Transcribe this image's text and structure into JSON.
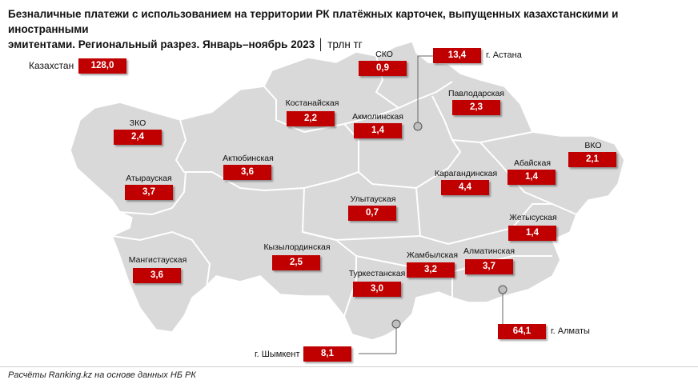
{
  "title": {
    "line1": "Безналичные платежи с использованием на территории РК платёжных карточек, выпущенных казахстанскими и иностранными",
    "line2": "эмитентами. Региональный разрез. Январь–ноябрь 2023",
    "unit": "│ трлн тг"
  },
  "source": "Расчёты Ranking.kz на основе данных НБ РК",
  "total": {
    "label": "Казахстан",
    "value": "128,0"
  },
  "regions": [
    {
      "id": "sko",
      "label": "СКО",
      "value": "0,9"
    },
    {
      "id": "pavlodar",
      "label": "Павлодарская",
      "value": "2,3"
    },
    {
      "id": "kostanay",
      "label": "Костанайская",
      "value": "2,2"
    },
    {
      "id": "akmola",
      "label": "Акмолинская",
      "value": "1,4"
    },
    {
      "id": "zko",
      "label": "ЗКО",
      "value": "2,4"
    },
    {
      "id": "aktobe",
      "label": "Актюбинская",
      "value": "3,6"
    },
    {
      "id": "vko",
      "label": "ВКО",
      "value": "2,1"
    },
    {
      "id": "abai",
      "label": "Абайская",
      "value": "1,4"
    },
    {
      "id": "karaganda",
      "label": "Карагандинская",
      "value": "4,4"
    },
    {
      "id": "atyrau",
      "label": "Атырауская",
      "value": "3,7"
    },
    {
      "id": "ulytau",
      "label": "Улытауская",
      "value": "0,7"
    },
    {
      "id": "zhetysu",
      "label": "Жетысуская",
      "value": "1,4"
    },
    {
      "id": "mangystau",
      "label": "Мангистауская",
      "value": "3,6"
    },
    {
      "id": "kyzylorda",
      "label": "Кызылординская",
      "value": "2,5"
    },
    {
      "id": "zhambyl",
      "label": "Жамбылская",
      "value": "3,2"
    },
    {
      "id": "almaty_obl",
      "label": "Алматинская",
      "value": "3,7"
    },
    {
      "id": "turkestan",
      "label": "Туркестанская",
      "value": "3,0"
    }
  ],
  "cities": [
    {
      "id": "astana",
      "label": "г. Астана",
      "value": "13,4"
    },
    {
      "id": "almaty",
      "label": "г. Алматы",
      "value": "64,1"
    },
    {
      "id": "shymkent",
      "label": "г. Шымкент",
      "value": "8,1"
    }
  ],
  "colors": {
    "value_box": "#c00000",
    "map_fill": "#d9d9d9",
    "borders": "#ffffff"
  }
}
